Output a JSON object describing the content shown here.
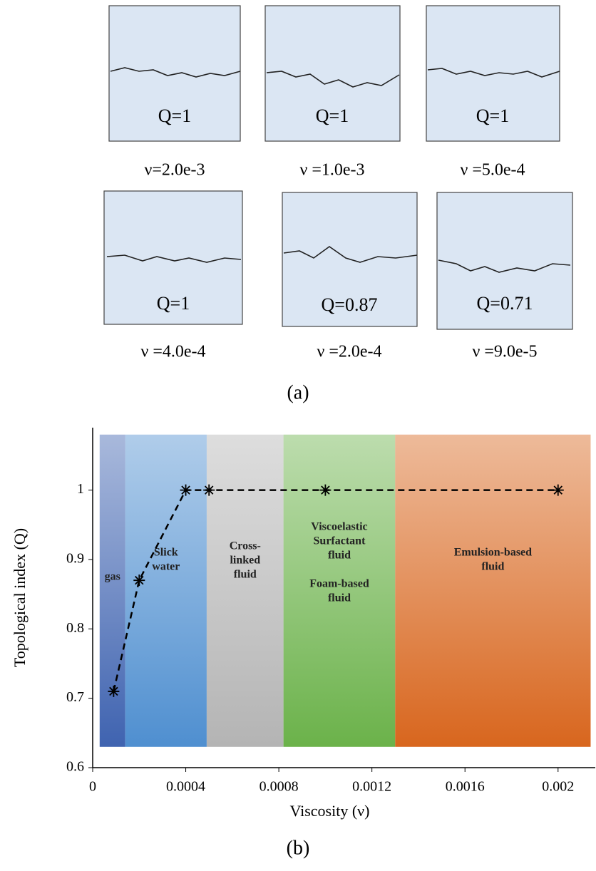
{
  "panels": [
    {
      "q": "Q=1",
      "nu": "ν=2.0e-3"
    },
    {
      "q": "Q=1",
      "nu": "ν =1.0e-3"
    },
    {
      "q": "Q=1",
      "nu": "ν =5.0e-4"
    },
    {
      "q": "Q=1",
      "nu": "ν =4.0e-4"
    },
    {
      "q": "Q=0.87",
      "nu": "ν =2.0e-4"
    },
    {
      "q": "Q=0.71",
      "nu": "ν =9.0e-5"
    }
  ],
  "caption_a": "(a)",
  "caption_b": "(b)",
  "chart_data": {
    "type": "line",
    "x_label": "Viscosity (ν)",
    "y_label": "Topological index (Q)",
    "x": [
      9e-05,
      0.0002,
      0.0004,
      0.0005,
      0.001,
      0.002
    ],
    "values": [
      0.71,
      0.87,
      1,
      1,
      1,
      1
    ],
    "color": "#000000",
    "xlim": [
      0,
      0.00216
    ],
    "ylim": [
      0.6,
      1.09
    ],
    "xticks": [
      0,
      0.0004,
      0.0008,
      0.0012,
      0.0016,
      0.002
    ],
    "yticks": [
      0.6,
      0.7,
      0.8,
      0.9,
      1
    ],
    "regions": [
      {
        "label_lines": [
          "gas"
        ],
        "x": [
          3e-05,
          0.00014
        ],
        "y": [
          0.63,
          1.08
        ],
        "color": "#3f63b0"
      },
      {
        "label_lines": [
          "Slick",
          "water"
        ],
        "x": [
          0.00014,
          0.00049
        ],
        "y": [
          0.63,
          1.08
        ],
        "color": "#4f8fd0"
      },
      {
        "label_lines": [
          "Cross-",
          "linked",
          "fluid"
        ],
        "x": [
          0.00049,
          0.00082
        ],
        "y": [
          0.63,
          1.08
        ],
        "color": "#b4b4b4"
      },
      {
        "label_lines": [
          "Viscoelastic",
          "Surfactant",
          "fluid",
          "",
          "Foam-based",
          "fluid"
        ],
        "x": [
          0.00082,
          0.0013
        ],
        "y": [
          0.63,
          1.08
        ],
        "color": "#6bb24a"
      },
      {
        "label_lines": [
          "Emulsion-based",
          "fluid"
        ],
        "x": [
          0.0013,
          0.00214
        ],
        "y": [
          0.63,
          1.08
        ],
        "color": "#d8661e"
      }
    ]
  }
}
